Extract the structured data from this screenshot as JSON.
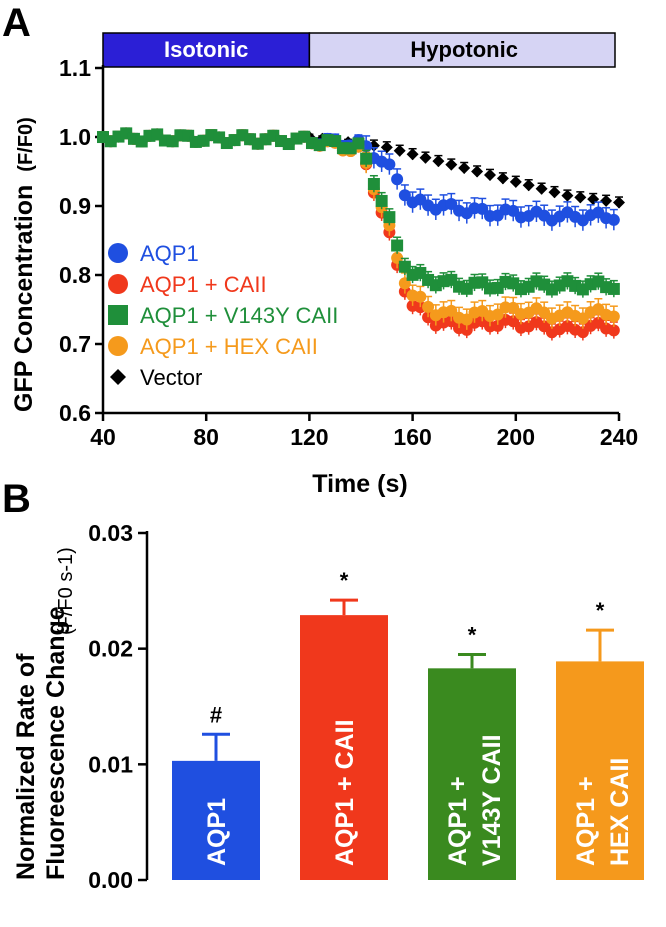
{
  "panels": {
    "a": "A",
    "b": "B"
  },
  "colors": {
    "AQP1": "#1f4fe0",
    "AQP1 + CAII": "#f0381c",
    "AQP1 + V143Y CAII": "#1f8f3a",
    "AQP1 + HEX CAII": "#f59a1c",
    "Vector": "#000000",
    "isotonic_band": "#2b1fd6",
    "hypotonic_band": "#d6d4f4",
    "bar_green": "#3a8a1f",
    "bar_orange": "#f5991c"
  },
  "chart_data": [
    {
      "type": "line",
      "panel": "A",
      "ylabel": "GFP Concentration",
      "ylabel_unit": "(F/F0)",
      "xlabel": "Time (s)",
      "xlim": [
        40,
        240
      ],
      "ylim": [
        0.6,
        1.1
      ],
      "x_ticks": [
        "40",
        "80",
        "120",
        "160",
        "200",
        "240"
      ],
      "y_ticks": [
        "0.6",
        "0.7",
        "0.8",
        "0.9",
        "1.0",
        "1.1"
      ],
      "bands": [
        {
          "label": "Isotonic",
          "from": 40,
          "to": 120
        },
        {
          "label": "Hypotonic",
          "from": 120,
          "to": 240
        }
      ],
      "series": [
        {
          "name": "AQP1",
          "marker": "circle",
          "points": [
            [
              40,
              1.0
            ],
            [
              120,
              0.995
            ],
            [
              140,
              0.99
            ],
            [
              150,
              0.96
            ],
            [
              160,
              0.905
            ],
            [
              170,
              0.9
            ],
            [
              180,
              0.895
            ],
            [
              190,
              0.89
            ],
            [
              200,
              0.89
            ],
            [
              210,
              0.885
            ],
            [
              220,
              0.885
            ],
            [
              240,
              0.885
            ]
          ],
          "error": 0.015
        },
        {
          "name": "AQP1 + CAII",
          "marker": "circle",
          "points": [
            [
              40,
              1.0
            ],
            [
              120,
              0.995
            ],
            [
              140,
              0.98
            ],
            [
              150,
              0.87
            ],
            [
              155,
              0.8
            ],
            [
              160,
              0.755
            ],
            [
              170,
              0.73
            ],
            [
              180,
              0.725
            ],
            [
              190,
              0.73
            ],
            [
              200,
              0.73
            ],
            [
              210,
              0.725
            ],
            [
              220,
              0.72
            ],
            [
              230,
              0.725
            ],
            [
              240,
              0.725
            ]
          ],
          "error": 0.012
        },
        {
          "name": "AQP1 + V143Y CAII",
          "marker": "square",
          "points": [
            [
              40,
              1.0
            ],
            [
              120,
              0.995
            ],
            [
              140,
              0.985
            ],
            [
              150,
              0.89
            ],
            [
              155,
              0.83
            ],
            [
              160,
              0.8
            ],
            [
              170,
              0.79
            ],
            [
              180,
              0.785
            ],
            [
              200,
              0.785
            ],
            [
              220,
              0.785
            ],
            [
              240,
              0.785
            ]
          ],
          "error": 0.012
        },
        {
          "name": "AQP1 + HEX CAII",
          "marker": "circle",
          "points": [
            [
              40,
              1.0
            ],
            [
              120,
              0.995
            ],
            [
              140,
              0.98
            ],
            [
              150,
              0.88
            ],
            [
              155,
              0.81
            ],
            [
              160,
              0.77
            ],
            [
              170,
              0.745
            ],
            [
              180,
              0.74
            ],
            [
              190,
              0.745
            ],
            [
              200,
              0.75
            ],
            [
              210,
              0.745
            ],
            [
              220,
              0.74
            ],
            [
              230,
              0.745
            ],
            [
              240,
              0.745
            ]
          ],
          "error": 0.015
        },
        {
          "name": "Vector",
          "marker": "diamond",
          "points": [
            [
              120,
              1.0
            ],
            [
              130,
              0.995
            ],
            [
              140,
              0.99
            ],
            [
              150,
              0.985
            ],
            [
              160,
              0.975
            ],
            [
              170,
              0.965
            ],
            [
              180,
              0.955
            ],
            [
              190,
              0.945
            ],
            [
              200,
              0.935
            ],
            [
              210,
              0.925
            ],
            [
              220,
              0.915
            ],
            [
              230,
              0.91
            ],
            [
              240,
              0.905
            ]
          ],
          "error": 0.008
        }
      ]
    },
    {
      "type": "bar",
      "panel": "B",
      "ylabel": "Normalized Rate of Fluoreescence Change",
      "ylabel_unit": "(F/F0 s-1)",
      "ylim": [
        0,
        0.03
      ],
      "y_ticks": [
        "0.00",
        "0.01",
        "0.02",
        "0.03"
      ],
      "categories": [
        {
          "lines": [
            "AQP1"
          ]
        },
        {
          "lines": [
            "AQP1 + CAII"
          ]
        },
        {
          "lines": [
            "AQP1 +",
            "V143Y CAII"
          ]
        },
        {
          "lines": [
            "AQP1 +",
            "HEX CAII"
          ]
        }
      ],
      "values": [
        0.0103,
        0.0229,
        0.0183,
        0.0189
      ],
      "errors": [
        0.0023,
        0.0013,
        0.0012,
        0.0027
      ],
      "annotations": [
        "#",
        "*",
        "*",
        "*"
      ]
    }
  ]
}
